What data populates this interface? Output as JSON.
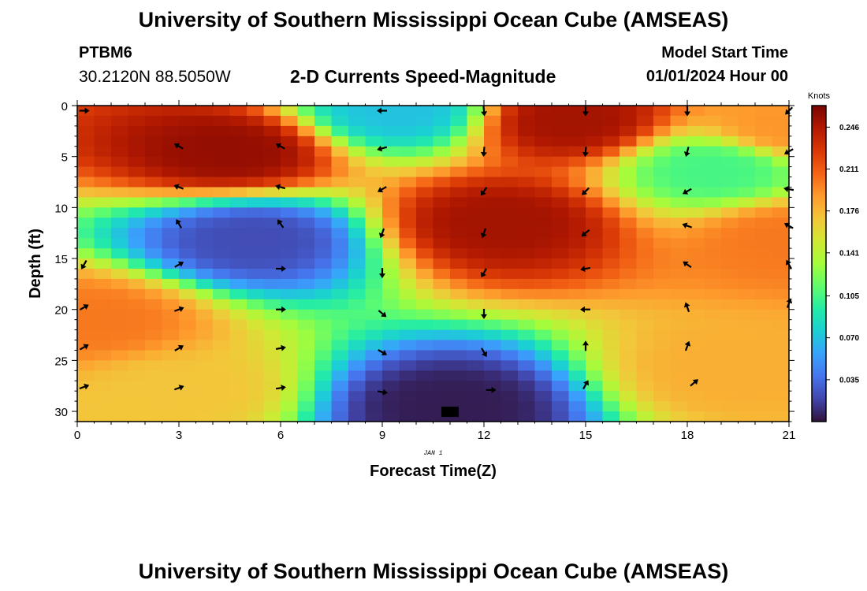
{
  "header": {
    "title": "University of Southern Mississippi Ocean Cube (AMSEAS)",
    "station": "PTBM6",
    "coordinates": "30.2120N  88.5050W",
    "subtitle": "2-D Currents Speed-Magnitude",
    "model_start_label": "Model Start Time",
    "model_start_value": "01/01/2024 Hour 00"
  },
  "footer": {
    "title": "University of Southern Mississippi Ocean Cube (AMSEAS)"
  },
  "chart_data": {
    "type": "heatmap",
    "title": "2-D Currents Speed-Magnitude",
    "xlabel": "Forecast Time(Z)",
    "ylabel": "Depth (ft)",
    "x_date_label": "JAN 1",
    "xlim": [
      0,
      21
    ],
    "ylim": [
      0,
      31
    ],
    "x_ticks": [
      0,
      3,
      6,
      9,
      12,
      15,
      18,
      21
    ],
    "y_ticks": [
      0,
      5,
      10,
      15,
      20,
      25,
      30
    ],
    "colorbar": {
      "label": "Knots",
      "range": [
        0.0,
        0.264
      ],
      "ticks": [
        "0.246",
        "0.211",
        "0.176",
        "0.141",
        "0.105",
        "0.070",
        "0.035"
      ],
      "tick_values": [
        0.246,
        0.211,
        0.176,
        0.141,
        0.105,
        0.07,
        0.035
      ],
      "colormap": [
        "#30123b",
        "#4145ab",
        "#4675ed",
        "#39a2fc",
        "#1bcfd4",
        "#24eca6",
        "#61fc6c",
        "#a4fc3b",
        "#d1e834",
        "#f3c63a",
        "#fe9b2d",
        "#f36315",
        "#d93806",
        "#b11901",
        "#7a0402"
      ]
    },
    "field_centers": [
      {
        "t": 4.5,
        "d": 4.5,
        "speed": 0.255
      },
      {
        "t": 14.5,
        "d": 1.5,
        "speed": 0.25
      },
      {
        "t": 12.5,
        "d": 11.5,
        "speed": 0.25
      },
      {
        "t": 5.2,
        "d": 13.2,
        "speed": 0.022
      },
      {
        "t": 11.0,
        "d": 29.5,
        "speed": 0.004
      },
      {
        "t": 18.8,
        "d": 6.3,
        "speed": 0.105
      },
      {
        "t": 19.3,
        "d": 26.0,
        "speed": 0.18
      },
      {
        "t": 0.5,
        "d": 21.0,
        "speed": 0.2
      },
      {
        "t": 9.5,
        "d": 0.5,
        "speed": 0.07
      },
      {
        "t": 3.0,
        "d": 28.0,
        "speed": 0.17
      },
      {
        "t": 21.0,
        "d": 2.0,
        "speed": 0.19
      },
      {
        "t": 21.0,
        "d": 13.0,
        "speed": 0.2
      }
    ],
    "vectors": [
      {
        "t": 0.2,
        "d": 0.5,
        "angle": 0
      },
      {
        "t": 3,
        "d": 4,
        "angle": 210
      },
      {
        "t": 6,
        "d": 4,
        "angle": 210
      },
      {
        "t": 9,
        "d": 0.5,
        "angle": 180
      },
      {
        "t": 12,
        "d": 0.5,
        "angle": 85
      },
      {
        "t": 15,
        "d": 0.5,
        "angle": 90
      },
      {
        "t": 18,
        "d": 0.5,
        "angle": 90
      },
      {
        "t": 21,
        "d": 0.5,
        "angle": 135
      },
      {
        "t": 9,
        "d": 4.2,
        "angle": 165
      },
      {
        "t": 12,
        "d": 4.5,
        "angle": 95
      },
      {
        "t": 15,
        "d": 4.5,
        "angle": 95
      },
      {
        "t": 18,
        "d": 4.5,
        "angle": 105
      },
      {
        "t": 21,
        "d": 4.5,
        "angle": 150
      },
      {
        "t": 3,
        "d": 8,
        "angle": 200
      },
      {
        "t": 6,
        "d": 8,
        "angle": 195
      },
      {
        "t": 9,
        "d": 8.2,
        "angle": 150
      },
      {
        "t": 12,
        "d": 8.4,
        "angle": 125
      },
      {
        "t": 15,
        "d": 8.4,
        "angle": 135
      },
      {
        "t": 18,
        "d": 8.4,
        "angle": 150
      },
      {
        "t": 21,
        "d": 8.2,
        "angle": 190
      },
      {
        "t": 3,
        "d": 11.6,
        "angle": 240
      },
      {
        "t": 6,
        "d": 11.6,
        "angle": 235
      },
      {
        "t": 9,
        "d": 12.5,
        "angle": 110
      },
      {
        "t": 12,
        "d": 12.5,
        "angle": 110
      },
      {
        "t": 15,
        "d": 12.5,
        "angle": 140
      },
      {
        "t": 18,
        "d": 11.8,
        "angle": 200
      },
      {
        "t": 21,
        "d": 11.8,
        "angle": 210
      },
      {
        "t": 0.2,
        "d": 15.6,
        "angle": 120
      },
      {
        "t": 3,
        "d": 15.6,
        "angle": 330
      },
      {
        "t": 6,
        "d": 16,
        "angle": 0
      },
      {
        "t": 9,
        "d": 16.4,
        "angle": 90
      },
      {
        "t": 12,
        "d": 16.4,
        "angle": 120
      },
      {
        "t": 15,
        "d": 16,
        "angle": 170
      },
      {
        "t": 18,
        "d": 15.6,
        "angle": 215
      },
      {
        "t": 21,
        "d": 15.6,
        "angle": 240
      },
      {
        "t": 0.2,
        "d": 19.8,
        "angle": 330
      },
      {
        "t": 3,
        "d": 20,
        "angle": 340
      },
      {
        "t": 6,
        "d": 20,
        "angle": 0
      },
      {
        "t": 9,
        "d": 20.4,
        "angle": 40
      },
      {
        "t": 12,
        "d": 20.4,
        "angle": 90
      },
      {
        "t": 15,
        "d": 20,
        "angle": 180
      },
      {
        "t": 18,
        "d": 19.8,
        "angle": 250
      },
      {
        "t": 21,
        "d": 19.4,
        "angle": 290
      },
      {
        "t": 0.2,
        "d": 23.7,
        "angle": 330
      },
      {
        "t": 3,
        "d": 23.8,
        "angle": 330
      },
      {
        "t": 6,
        "d": 23.8,
        "angle": 350
      },
      {
        "t": 9,
        "d": 24.2,
        "angle": 30
      },
      {
        "t": 12,
        "d": 24.2,
        "angle": 60
      },
      {
        "t": 15,
        "d": 23.6,
        "angle": 270
      },
      {
        "t": 18,
        "d": 23.6,
        "angle": 290
      },
      {
        "t": 0.2,
        "d": 27.6,
        "angle": 340
      },
      {
        "t": 3,
        "d": 27.7,
        "angle": 340
      },
      {
        "t": 6,
        "d": 27.7,
        "angle": 350
      },
      {
        "t": 9,
        "d": 28.1,
        "angle": 10
      },
      {
        "t": 12.2,
        "d": 27.9,
        "angle": 0
      },
      {
        "t": 15,
        "d": 27.4,
        "angle": 300
      },
      {
        "t": 18.2,
        "d": 27.2,
        "angle": 320
      }
    ],
    "marker": {
      "t": 11,
      "d": 30,
      "shape": "black-box"
    }
  }
}
